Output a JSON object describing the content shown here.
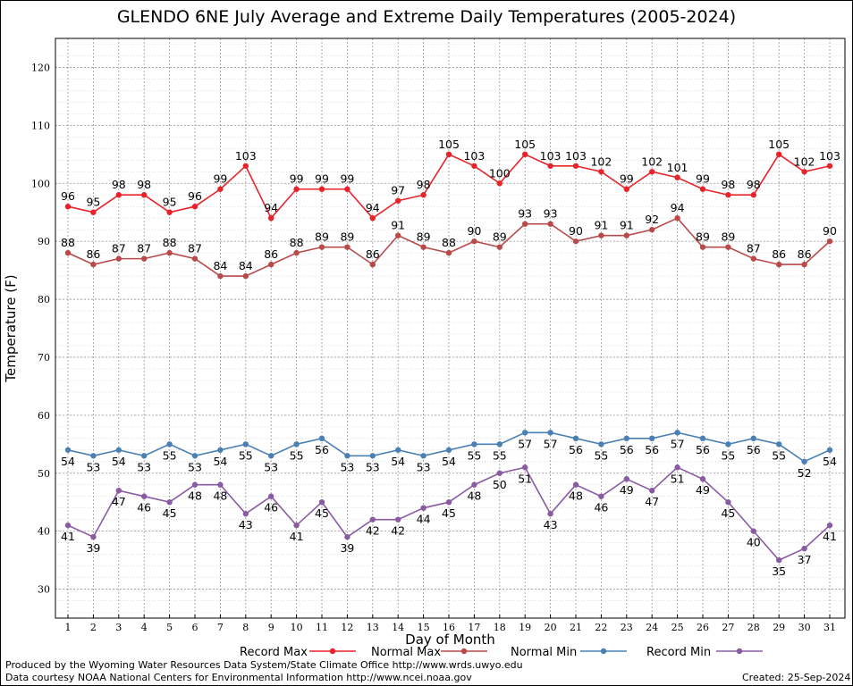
{
  "chart_data": {
    "type": "line",
    "title": "GLENDO 6NE July Average and Extreme Daily Temperatures (2005-2024)",
    "xlabel": "Day of Month",
    "ylabel": "Temperature (F)",
    "ylim": [
      25,
      125
    ],
    "yticks": [
      30,
      40,
      50,
      60,
      70,
      80,
      90,
      100,
      110,
      120
    ],
    "grid": true,
    "legend_position": "bottom",
    "x": [
      1,
      2,
      3,
      4,
      5,
      6,
      7,
      8,
      9,
      10,
      11,
      12,
      13,
      14,
      15,
      16,
      17,
      18,
      19,
      20,
      21,
      22,
      23,
      24,
      25,
      26,
      27,
      28,
      29,
      30,
      31
    ],
    "series": [
      {
        "name": "Record Max",
        "color": "#e8232a",
        "values": [
          96,
          95,
          98,
          98,
          95,
          96,
          99,
          103,
          94,
          99,
          99,
          99,
          94,
          97,
          98,
          105,
          103,
          100,
          105,
          103,
          103,
          102,
          99,
          102,
          101,
          99,
          98,
          98,
          105,
          102,
          103
        ]
      },
      {
        "name": "Normal Max",
        "color": "#b94a4a",
        "values": [
          88,
          86,
          87,
          87,
          88,
          87,
          84,
          84,
          86,
          88,
          89,
          89,
          86,
          91,
          89,
          88,
          90,
          89,
          93,
          93,
          90,
          91,
          91,
          92,
          94,
          89,
          89,
          87,
          86,
          86,
          90
        ]
      },
      {
        "name": "Normal Min",
        "color": "#4a80b4",
        "values": [
          54,
          53,
          54,
          53,
          55,
          53,
          54,
          55,
          53,
          55,
          56,
          53,
          53,
          54,
          53,
          54,
          55,
          55,
          57,
          57,
          56,
          55,
          56,
          56,
          57,
          56,
          55,
          56,
          55,
          52,
          54
        ]
      },
      {
        "name": "Record Min",
        "color": "#8a5ba3",
        "values": [
          41,
          39,
          47,
          46,
          45,
          48,
          48,
          43,
          46,
          41,
          45,
          39,
          42,
          42,
          44,
          45,
          48,
          50,
          51,
          43,
          48,
          46,
          49,
          47,
          51,
          49,
          45,
          40,
          35,
          37,
          41
        ]
      }
    ]
  },
  "credits": {
    "produced_by": "Produced by the Wyoming Water Resources Data System/State Climate Office http://www.wrds.uwyo.edu",
    "courtesy": "Data courtesy NOAA National Centers for Environmental Information http://www.ncei.noaa.gov",
    "created": "Created:  25-Sep-2024"
  }
}
